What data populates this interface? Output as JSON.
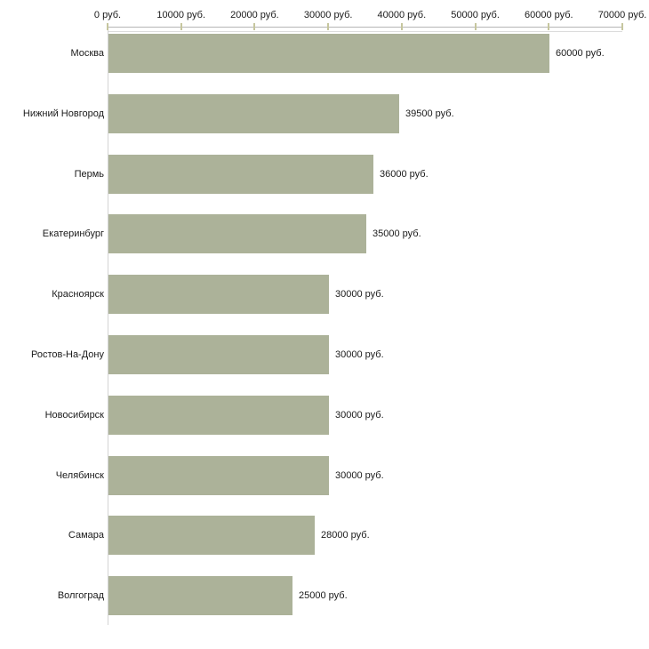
{
  "chart_data": {
    "type": "bar",
    "orientation": "horizontal",
    "title": "",
    "xlabel": "",
    "ylabel": "",
    "unit": "руб.",
    "categories": [
      "Москва",
      "Нижний Новгород",
      "Пермь",
      "Екатеринбург",
      "Красноярск",
      "Ростов-На-Дону",
      "Новосибирск",
      "Челябинск",
      "Самара",
      "Волгоград"
    ],
    "values": [
      60000,
      39500,
      36000,
      35000,
      30000,
      30000,
      30000,
      30000,
      28000,
      25000
    ],
    "value_labels": [
      "60000 руб.",
      "39500 руб.",
      "36000 руб.",
      "35000 руб.",
      "30000 руб.",
      "30000 руб.",
      "30000 руб.",
      "30000 руб.",
      "28000 руб.",
      "25000 руб."
    ],
    "x_ticks": [
      0,
      10000,
      20000,
      30000,
      40000,
      50000,
      60000,
      70000
    ],
    "x_tick_labels": [
      "0 руб.",
      "10000 руб.",
      "20000 руб.",
      "30000 руб.",
      "40000 руб.",
      "50000 руб.",
      "60000 руб.",
      "70000 руб."
    ],
    "xlim": [
      0,
      70000
    ],
    "grid": false,
    "legend": false,
    "axis_position": "top",
    "colors": {
      "bar": "#acb299",
      "tick": "#c6c69e",
      "axis_line_top": "#b5b5b5",
      "axis_line_bottom": "#dcdcdc",
      "y_axis_line": "#d4d4d4",
      "text": "#1a1a1a",
      "background": "#ffffff"
    }
  }
}
